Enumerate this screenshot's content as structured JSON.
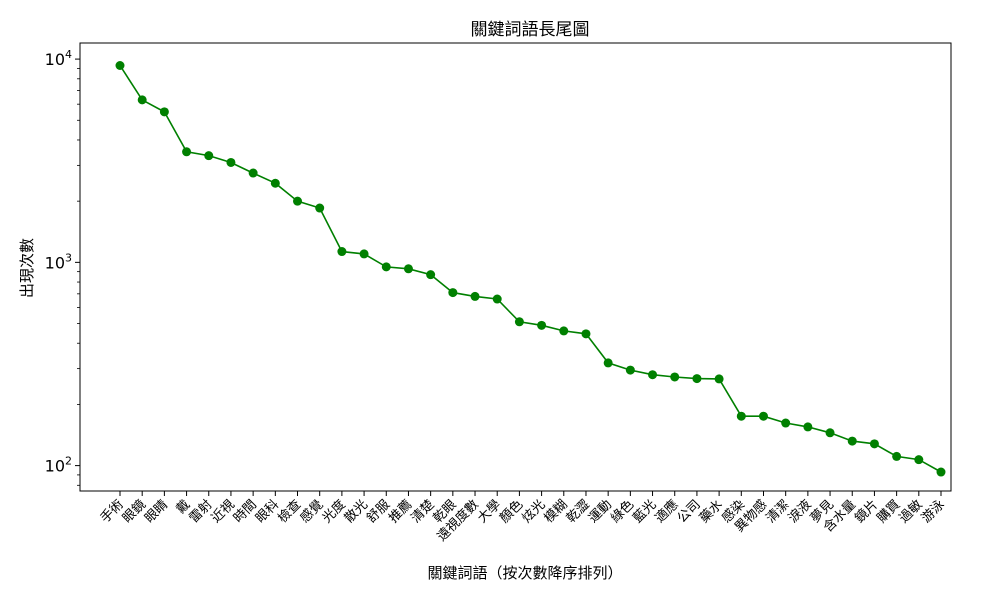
{
  "chart_data": {
    "type": "line",
    "title": "關鍵詞語長尾圖",
    "xlabel": "關鍵詞語（按次數降序排列）",
    "ylabel": "出現次數",
    "yscale": "log",
    "ylim": [
      75,
      12000
    ],
    "grid": false,
    "color": "#008000",
    "yticks": [
      {
        "base": "10",
        "exp": "2",
        "value": 100
      },
      {
        "base": "10",
        "exp": "3",
        "value": 1000
      },
      {
        "base": "10",
        "exp": "4",
        "value": 10000
      }
    ],
    "categories": [
      "手術",
      "眼鏡",
      "眼睛",
      "戴",
      "雷射",
      "近視",
      "時間",
      "眼科",
      "檢查",
      "感覺",
      "光度",
      "散光",
      "舒服",
      "推薦",
      "清楚",
      "乾眼",
      "遠視度數",
      "大學",
      "顏色",
      "炫光",
      "模糊",
      "乾澀",
      "運動",
      "綠色",
      "藍光",
      "適應",
      "公司",
      "藥水",
      "感染",
      "異物感",
      "清潔",
      "淚液",
      "夢見",
      "含水量",
      "鏡片",
      "購買",
      "過敏",
      "游泳"
    ],
    "values": [
      9300,
      6300,
      5500,
      3500,
      3350,
      3100,
      2750,
      2450,
      2000,
      1850,
      1130,
      1100,
      950,
      930,
      870,
      710,
      680,
      660,
      510,
      490,
      460,
      445,
      320,
      295,
      280,
      273,
      268,
      267,
      175,
      175,
      162,
      155,
      145,
      132,
      128,
      111,
      107,
      93
    ]
  }
}
